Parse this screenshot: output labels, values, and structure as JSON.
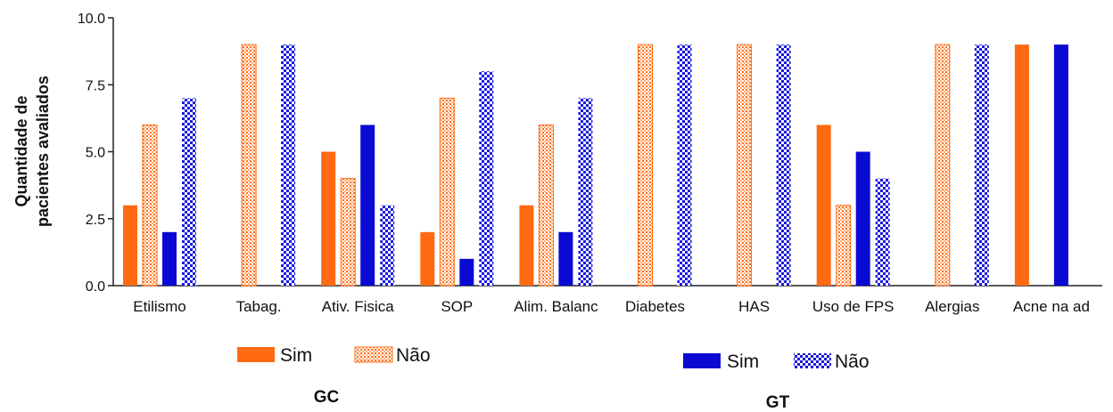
{
  "chart_data": {
    "type": "bar",
    "title": "",
    "ylabel_lines": [
      "Quantidade de",
      "pacientes avaliados"
    ],
    "xlabel": "",
    "ylim": [
      0,
      10
    ],
    "yticks": [
      "0.0",
      "2.5",
      "5.0",
      "7.5",
      "10.0"
    ],
    "ytick_values": [
      0,
      2.5,
      5,
      7.5,
      10
    ],
    "categories": [
      "Etilismo",
      "Tabag.",
      "Ativ. Fisica",
      "SOP",
      "Alim. Balanc",
      "Diabetes",
      "HAS",
      "Uso de FPS",
      "Alergias",
      "Acne na ad"
    ],
    "series": [
      {
        "name": "Sim",
        "group": "GC",
        "pattern": "solid",
        "color": "#ff6a13",
        "values": [
          3,
          0,
          5,
          2,
          3,
          0,
          0,
          6,
          0,
          9
        ]
      },
      {
        "name": "Não",
        "group": "GC",
        "pattern": "dotted",
        "color": "#ff6a13",
        "values": [
          6,
          9,
          4,
          7,
          6,
          9,
          9,
          3,
          9,
          0
        ]
      },
      {
        "name": "Sim",
        "group": "GT",
        "pattern": "solid",
        "color": "#0a0ad2",
        "values": [
          2,
          0,
          6,
          1,
          2,
          0,
          0,
          5,
          0,
          9
        ]
      },
      {
        "name": "Não",
        "group": "GT",
        "pattern": "checker",
        "color": "#1a1ae0",
        "values": [
          7,
          9,
          3,
          8,
          7,
          9,
          9,
          4,
          9,
          0
        ]
      }
    ],
    "groups": [
      "GC",
      "GT"
    ],
    "grid": false
  }
}
